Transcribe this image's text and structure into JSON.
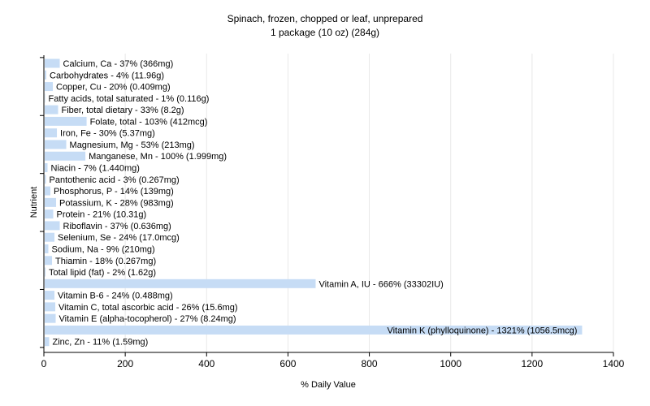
{
  "chart_data": {
    "type": "bar",
    "orientation": "horizontal",
    "title": "Spinach, frozen, chopped or leaf, unprepared",
    "subtitle": "1 package (10 oz) (284g)",
    "xlabel": "% Daily Value",
    "ylabel": "Nutrient",
    "xlim": [
      0,
      1400
    ],
    "xticks": [
      0,
      200,
      400,
      600,
      800,
      1000,
      1200,
      1400
    ],
    "grid": true,
    "bar_color": "#c6dcf5",
    "categories": [
      "Calcium, Ca",
      "Carbohydrates",
      "Copper, Cu",
      "Fatty acids, total saturated",
      "Fiber, total dietary",
      "Folate, total",
      "Iron, Fe",
      "Magnesium, Mg",
      "Manganese, Mn",
      "Niacin",
      "Pantothenic acid",
      "Phosphorus, P",
      "Potassium, K",
      "Protein",
      "Riboflavin",
      "Selenium, Se",
      "Sodium, Na",
      "Thiamin",
      "Total lipid (fat)",
      "Vitamin A, IU",
      "Vitamin B-6",
      "Vitamin C, total ascorbic acid",
      "Vitamin E (alpha-tocopherol)",
      "Vitamin K (phylloquinone)",
      "Zinc, Zn"
    ],
    "values": [
      37,
      4,
      20,
      1,
      33,
      103,
      30,
      53,
      100,
      7,
      3,
      14,
      28,
      21,
      37,
      24,
      9,
      18,
      2,
      666,
      24,
      26,
      27,
      1321,
      11
    ],
    "labels": [
      "Calcium, Ca - 37% (366mg)",
      "Carbohydrates - 4% (11.96g)",
      "Copper, Cu - 20% (0.409mg)",
      "Fatty acids, total saturated - 1% (0.116g)",
      "Fiber, total dietary - 33% (8.2g)",
      "Folate, total - 103% (412mcg)",
      "Iron, Fe - 30% (5.37mg)",
      "Magnesium, Mg - 53% (213mg)",
      "Manganese, Mn - 100% (1.999mg)",
      "Niacin - 7% (1.440mg)",
      "Pantothenic acid - 3% (0.267mg)",
      "Phosphorus, P - 14% (139mg)",
      "Potassium, K - 28% (983mg)",
      "Protein - 21% (10.31g)",
      "Riboflavin - 37% (0.636mg)",
      "Selenium, Se - 24% (17.0mcg)",
      "Sodium, Na - 9% (210mg)",
      "Thiamin - 18% (0.267mg)",
      "Total lipid (fat) - 2% (1.62g)",
      "Vitamin A, IU - 666% (33302IU)",
      "Vitamin B-6 - 24% (0.488mg)",
      "Vitamin C, total ascorbic acid - 26% (15.6mg)",
      "Vitamin E (alpha-tocopherol) - 27% (8.24mg)",
      "Vitamin K (phylloquinone) - 1321% (1056.5mcg)",
      "Zinc, Zn - 11% (1.59mg)"
    ]
  }
}
